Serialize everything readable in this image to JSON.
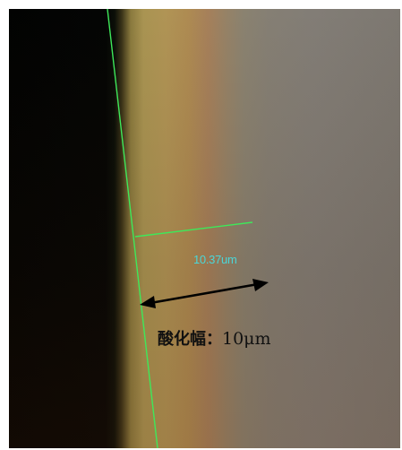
{
  "measurement": {
    "label": "10.37um",
    "line_color": "#3ee85a",
    "label_color": "#4ad6d8"
  },
  "annotation": {
    "prefix": "酸化幅：",
    "value": "10μm",
    "arrow_color": "#000000"
  }
}
